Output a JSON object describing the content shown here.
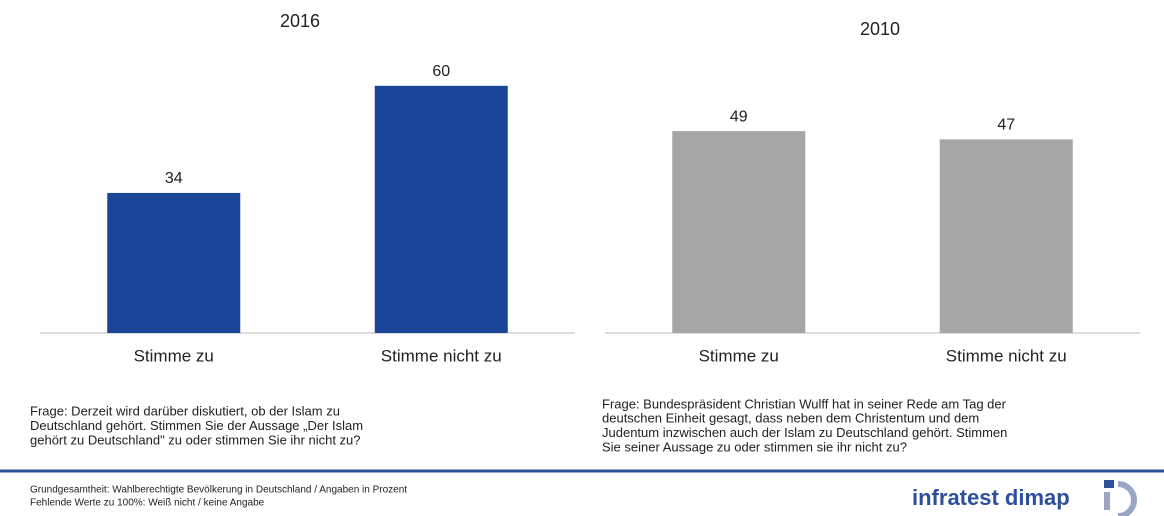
{
  "chart_data": [
    {
      "type": "bar",
      "title": "2016",
      "categories": [
        "Stimme zu",
        "Stimme nicht zu"
      ],
      "values": [
        34,
        60
      ],
      "color": "#1b4596",
      "question": [
        "Frage: Derzeit wird darüber diskutiert, ob der Islam zu",
        "Deutschland gehört. Stimmen Sie der Aussage „Der Islam",
        "gehört zu Deutschland\" zu oder stimmen Sie ihr nicht zu?"
      ]
    },
    {
      "type": "bar",
      "title": "2010",
      "categories": [
        "Stimme zu",
        "Stimme nicht zu"
      ],
      "values": [
        49,
        47
      ],
      "color": "#a6a6a6",
      "question": [
        "Frage: Bundespräsident Christian Wulff hat in seiner Rede am Tag der",
        "deutschen Einheit gesagt, dass neben dem Christentum und dem",
        "Judentum inzwischen auch der Islam zu Deutschland gehört. Stimmen",
        "Sie seiner Aussage zu oder stimmen sie ihr nicht zu?"
      ]
    }
  ],
  "footer": {
    "lines": [
      "Grundgesamtheit: Wahlberechtigte Bevölkerung in Deutschland / Angaben in Prozent",
      "Fehlende Werte zu 100%: Weiß nicht / keine Angabe"
    ],
    "brand": "infratest dimap"
  }
}
